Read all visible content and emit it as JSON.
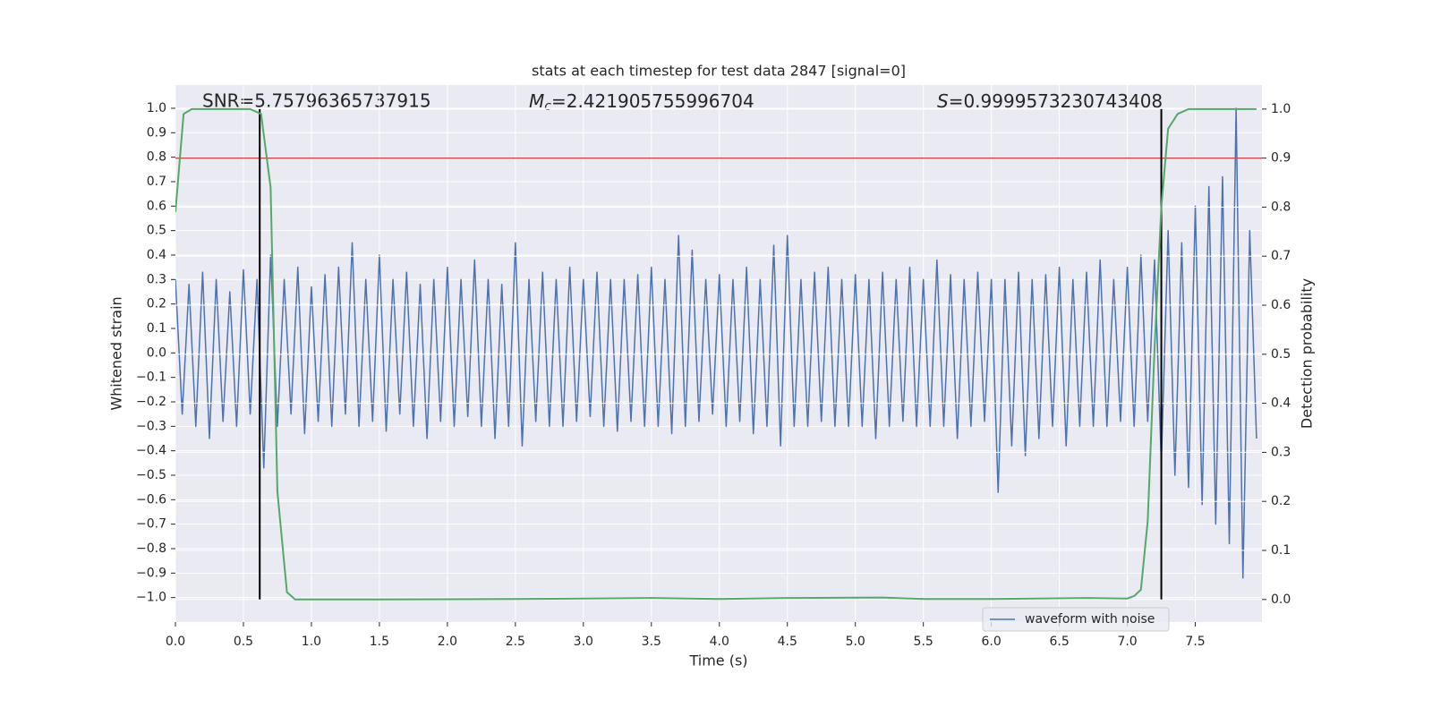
{
  "chart_data": {
    "type": "line",
    "title": "stats at each timestep for test data 2847 [signal=0]",
    "xlabel": "Time (s)",
    "ylabel": "Whitened strain",
    "y2label": "Detection probability",
    "xlim": [
      0,
      7.99
    ],
    "ylim": [
      -1.1,
      1.095
    ],
    "y2lim": [
      -0.046,
      1.049
    ],
    "grid": true,
    "legend": "lower right",
    "xticks": [
      {
        "value": 0,
        "label": "0.0"
      },
      {
        "value": 0.5,
        "label": "0.5"
      },
      {
        "value": 1,
        "label": "1.0"
      },
      {
        "value": 1.5,
        "label": "1.5"
      },
      {
        "value": 2,
        "label": "2.0"
      },
      {
        "value": 2.5,
        "label": "2.5"
      },
      {
        "value": 3,
        "label": "3.0"
      },
      {
        "value": 3.5,
        "label": "3.5"
      },
      {
        "value": 4,
        "label": "4.0"
      },
      {
        "value": 4.5,
        "label": "4.5"
      },
      {
        "value": 5,
        "label": "5.0"
      },
      {
        "value": 5.5,
        "label": "5.5"
      },
      {
        "value": 6,
        "label": "6.0"
      },
      {
        "value": 6.5,
        "label": "6.5"
      },
      {
        "value": 7,
        "label": "7.0"
      },
      {
        "value": 7.5,
        "label": "7.5"
      }
    ],
    "yticks": [
      {
        "value": -1,
        "label": "−1.0"
      },
      {
        "value": -0.9,
        "label": "−0.9"
      },
      {
        "value": -0.8,
        "label": "−0.8"
      },
      {
        "value": -0.7,
        "label": "−0.7"
      },
      {
        "value": -0.6,
        "label": "−0.6"
      },
      {
        "value": -0.5,
        "label": "−0.5"
      },
      {
        "value": -0.4,
        "label": "−0.4"
      },
      {
        "value": -0.3,
        "label": "−0.3"
      },
      {
        "value": -0.2,
        "label": "−0.2"
      },
      {
        "value": -0.1,
        "label": "−0.1"
      },
      {
        "value": 0,
        "label": "0.0"
      },
      {
        "value": 0.1,
        "label": "0.1"
      },
      {
        "value": 0.2,
        "label": "0.2"
      },
      {
        "value": 0.3,
        "label": "0.3"
      },
      {
        "value": 0.4,
        "label": "0.4"
      },
      {
        "value": 0.5,
        "label": "0.5"
      },
      {
        "value": 0.6,
        "label": "0.6"
      },
      {
        "value": 0.7,
        "label": "0.7"
      },
      {
        "value": 0.8,
        "label": "0.8"
      },
      {
        "value": 0.9,
        "label": "0.9"
      },
      {
        "value": 1,
        "label": "1.0"
      }
    ],
    "y2ticks": [
      {
        "value": 0,
        "label": "0.0"
      },
      {
        "value": 0.1,
        "label": "0.1"
      },
      {
        "value": 0.2,
        "label": "0.2"
      },
      {
        "value": 0.3,
        "label": "0.3"
      },
      {
        "value": 0.4,
        "label": "0.4"
      },
      {
        "value": 0.5,
        "label": "0.5"
      },
      {
        "value": 0.6,
        "label": "0.6"
      },
      {
        "value": 0.7,
        "label": "0.7"
      },
      {
        "value": 0.8,
        "label": "0.8"
      },
      {
        "value": 0.9,
        "label": "0.9"
      },
      {
        "value": 1,
        "label": "1.0"
      }
    ],
    "x": [
      0,
      0.05,
      0.1,
      0.15,
      0.2,
      0.25,
      0.3,
      0.35,
      0.4,
      0.45,
      0.5,
      0.55,
      0.6,
      0.65,
      0.7,
      0.75,
      0.8,
      0.85,
      0.9,
      0.95,
      1,
      1.05,
      1.1,
      1.15,
      1.2,
      1.25,
      1.3,
      1.35,
      1.4,
      1.45,
      1.5,
      1.55,
      1.6,
      1.65,
      1.7,
      1.75,
      1.8,
      1.85,
      1.9,
      1.95,
      2,
      2.05,
      2.1,
      2.15,
      2.2,
      2.25,
      2.3,
      2.35,
      2.4,
      2.45,
      2.5,
      2.55,
      2.6,
      2.65,
      2.7,
      2.75,
      2.8,
      2.85,
      2.9,
      2.95,
      3,
      3.05,
      3.1,
      3.15,
      3.2,
      3.25,
      3.3,
      3.35,
      3.4,
      3.45,
      3.5,
      3.55,
      3.6,
      3.65,
      3.7,
      3.75,
      3.8,
      3.85,
      3.9,
      3.95,
      4,
      4.05,
      4.1,
      4.15,
      4.2,
      4.25,
      4.3,
      4.35,
      4.4,
      4.45,
      4.5,
      4.55,
      4.6,
      4.65,
      4.7,
      4.75,
      4.8,
      4.85,
      4.9,
      4.95,
      5,
      5.05,
      5.1,
      5.15,
      5.2,
      5.25,
      5.3,
      5.35,
      5.4,
      5.45,
      5.5,
      5.55,
      5.6,
      5.65,
      5.7,
      5.75,
      5.8,
      5.85,
      5.9,
      5.95,
      6,
      6.05,
      6.1,
      6.15,
      6.2,
      6.25,
      6.3,
      6.35,
      6.4,
      6.45,
      6.5,
      6.55,
      6.6,
      6.65,
      6.7,
      6.75,
      6.8,
      6.85,
      6.9,
      6.95,
      7,
      7.05,
      7.1,
      7.15,
      7.2,
      7.25,
      7.3,
      7.35,
      7.4,
      7.45,
      7.5,
      7.55,
      7.6,
      7.65,
      7.7,
      7.75,
      7.8,
      7.85,
      7.9,
      7.95
    ],
    "series": [
      {
        "name": "waveform with noise",
        "color": "#4c72b0",
        "values": [
          0.3,
          -0.25,
          0.28,
          -0.3,
          0.33,
          -0.35,
          0.3,
          -0.28,
          0.25,
          -0.3,
          0.34,
          -0.25,
          0.3,
          -0.47,
          0.4,
          -0.3,
          0.3,
          -0.25,
          0.35,
          -0.33,
          0.27,
          -0.28,
          0.32,
          -0.3,
          0.35,
          -0.25,
          0.45,
          -0.3,
          0.3,
          -0.28,
          0.4,
          -0.32,
          0.3,
          -0.25,
          0.33,
          -0.3,
          0.28,
          -0.35,
          0.3,
          -0.28,
          0.35,
          -0.3,
          0.3,
          -0.26,
          0.38,
          -0.3,
          0.3,
          -0.35,
          0.28,
          -0.3,
          0.45,
          -0.38,
          0.3,
          -0.28,
          0.33,
          -0.3,
          0.3,
          -0.3,
          0.35,
          -0.28,
          0.3,
          -0.26,
          0.33,
          -0.3,
          0.3,
          -0.32,
          0.3,
          -0.28,
          0.32,
          -0.3,
          0.35,
          -0.3,
          0.3,
          -0.33,
          0.48,
          -0.3,
          0.42,
          -0.28,
          0.3,
          -0.25,
          0.32,
          -0.3,
          0.3,
          -0.28,
          0.35,
          -0.33,
          0.3,
          -0.3,
          0.44,
          -0.38,
          0.48,
          -0.3,
          0.3,
          -0.3,
          0.33,
          -0.28,
          0.35,
          -0.3,
          0.3,
          -0.3,
          0.32,
          -0.3,
          0.3,
          -0.35,
          0.33,
          -0.3,
          0.3,
          -0.28,
          0.35,
          -0.3,
          0.3,
          -0.3,
          0.38,
          -0.3,
          0.32,
          -0.35,
          0.3,
          -0.3,
          0.33,
          -0.28,
          0.3,
          -0.57,
          0.3,
          -0.38,
          0.33,
          -0.42,
          0.3,
          -0.35,
          0.32,
          -0.3,
          0.35,
          -0.38,
          0.3,
          -0.3,
          0.33,
          -0.3,
          0.38,
          -0.3,
          0.3,
          -0.28,
          0.35,
          -0.3,
          0.4,
          -0.28,
          0.38,
          -0.45,
          0.5,
          -0.5,
          0.45,
          -0.55,
          0.6,
          -0.62,
          0.68,
          -0.7,
          0.72,
          -0.78,
          1.0,
          -0.92,
          0.5,
          -0.35
        ]
      }
    ],
    "probability": {
      "axis": "y2",
      "color": "#55a868",
      "x": [
        0,
        0.06,
        0.12,
        0.3,
        0.55,
        0.63,
        0.7,
        0.75,
        0.82,
        0.88,
        1.5,
        2.5,
        3.5,
        4.0,
        4.5,
        5.2,
        5.5,
        6.0,
        6.7,
        7.0,
        7.05,
        7.1,
        7.15,
        7.2,
        7.25,
        7.3,
        7.37,
        7.45,
        7.95
      ],
      "values": [
        0.79,
        0.99,
        1.0,
        1.0,
        1.0,
        0.99,
        0.84,
        0.22,
        0.015,
        0.0,
        0.0,
        0.001,
        0.003,
        0.001,
        0.003,
        0.004,
        0.001,
        0.001,
        0.003,
        0.002,
        0.007,
        0.02,
        0.16,
        0.51,
        0.8,
        0.96,
        0.99,
        1.0,
        1.0
      ]
    },
    "threshold": {
      "axis": "y2",
      "value": 0.9,
      "color": "#c44e52"
    },
    "markers": {
      "axis": "y2",
      "x": [
        0.62,
        7.25
      ],
      "ymin": 0,
      "ymax": 1,
      "color": "#000000"
    },
    "annotations": [
      {
        "text": "SNR=5.75796365737915"
      },
      {
        "symbol": "M",
        "subscript": "c",
        "text": "=2.421905755996704"
      },
      {
        "symbol": "S",
        "text": "=0.9999573230743408"
      }
    ]
  }
}
